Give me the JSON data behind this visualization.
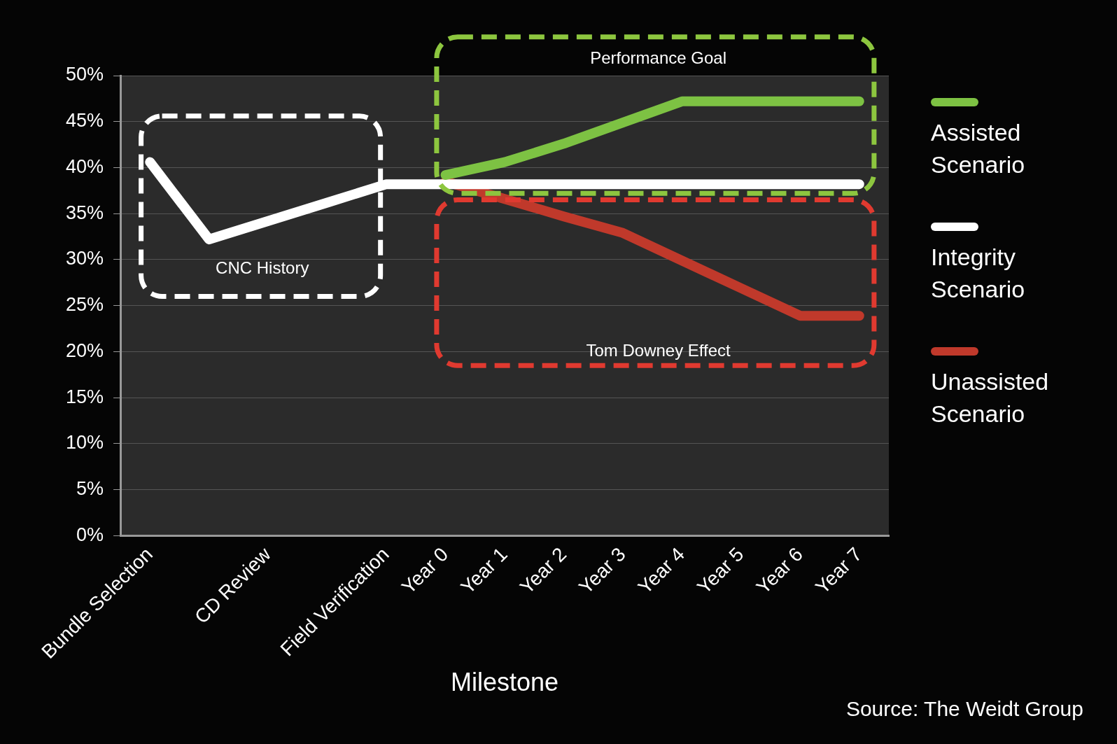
{
  "chart_data": {
    "type": "line",
    "xlabel": "Milestone",
    "categories": [
      "Bundle Selection",
      null,
      "CD Review",
      null,
      "Field Verification",
      "Year 0",
      "Year 1",
      "Year 2",
      "Year 3",
      "Year 4",
      "Year 5",
      "Year 6",
      "Year 7"
    ],
    "series": [
      {
        "name": "Assisted Scenario",
        "color": "#7dc243",
        "values": [
          null,
          null,
          null,
          null,
          null,
          39.2,
          40.6,
          42.6,
          44.9,
          47.2,
          47.2,
          47.2,
          47.2
        ]
      },
      {
        "name": "Integrity Scenario",
        "color": "#ffffff",
        "values": [
          40.6,
          32.2,
          34.2,
          36.2,
          38.2,
          38.2,
          38.2,
          38.2,
          38.2,
          38.2,
          38.2,
          38.2,
          38.2
        ]
      },
      {
        "name": "Unassisted Scenario",
        "color": "#c0392b",
        "values": [
          null,
          null,
          null,
          null,
          null,
          38.5,
          36.6,
          34.7,
          32.9,
          29.9,
          26.9,
          23.9,
          23.9
        ]
      }
    ],
    "ylim": [
      0,
      50
    ],
    "yticks": [
      {
        "value": 0,
        "label": "0%"
      },
      {
        "value": 5,
        "label": "5%"
      },
      {
        "value": 10,
        "label": "10%"
      },
      {
        "value": 15,
        "label": "15%"
      },
      {
        "value": 20,
        "label": "20%"
      },
      {
        "value": 25,
        "label": "25%"
      },
      {
        "value": 30,
        "label": "30%"
      },
      {
        "value": 35,
        "label": "35%"
      },
      {
        "value": 40,
        "label": "40%"
      },
      {
        "value": 45,
        "label": "45%"
      },
      {
        "value": 50,
        "label": "50%"
      }
    ],
    "grid": "y",
    "legend": "right",
    "marker": "none",
    "line_style": "solid",
    "annotations": [
      "CNC History",
      "Performance Goal",
      "Tom Downey Effect",
      "Source: The Weidt Group"
    ]
  }
}
